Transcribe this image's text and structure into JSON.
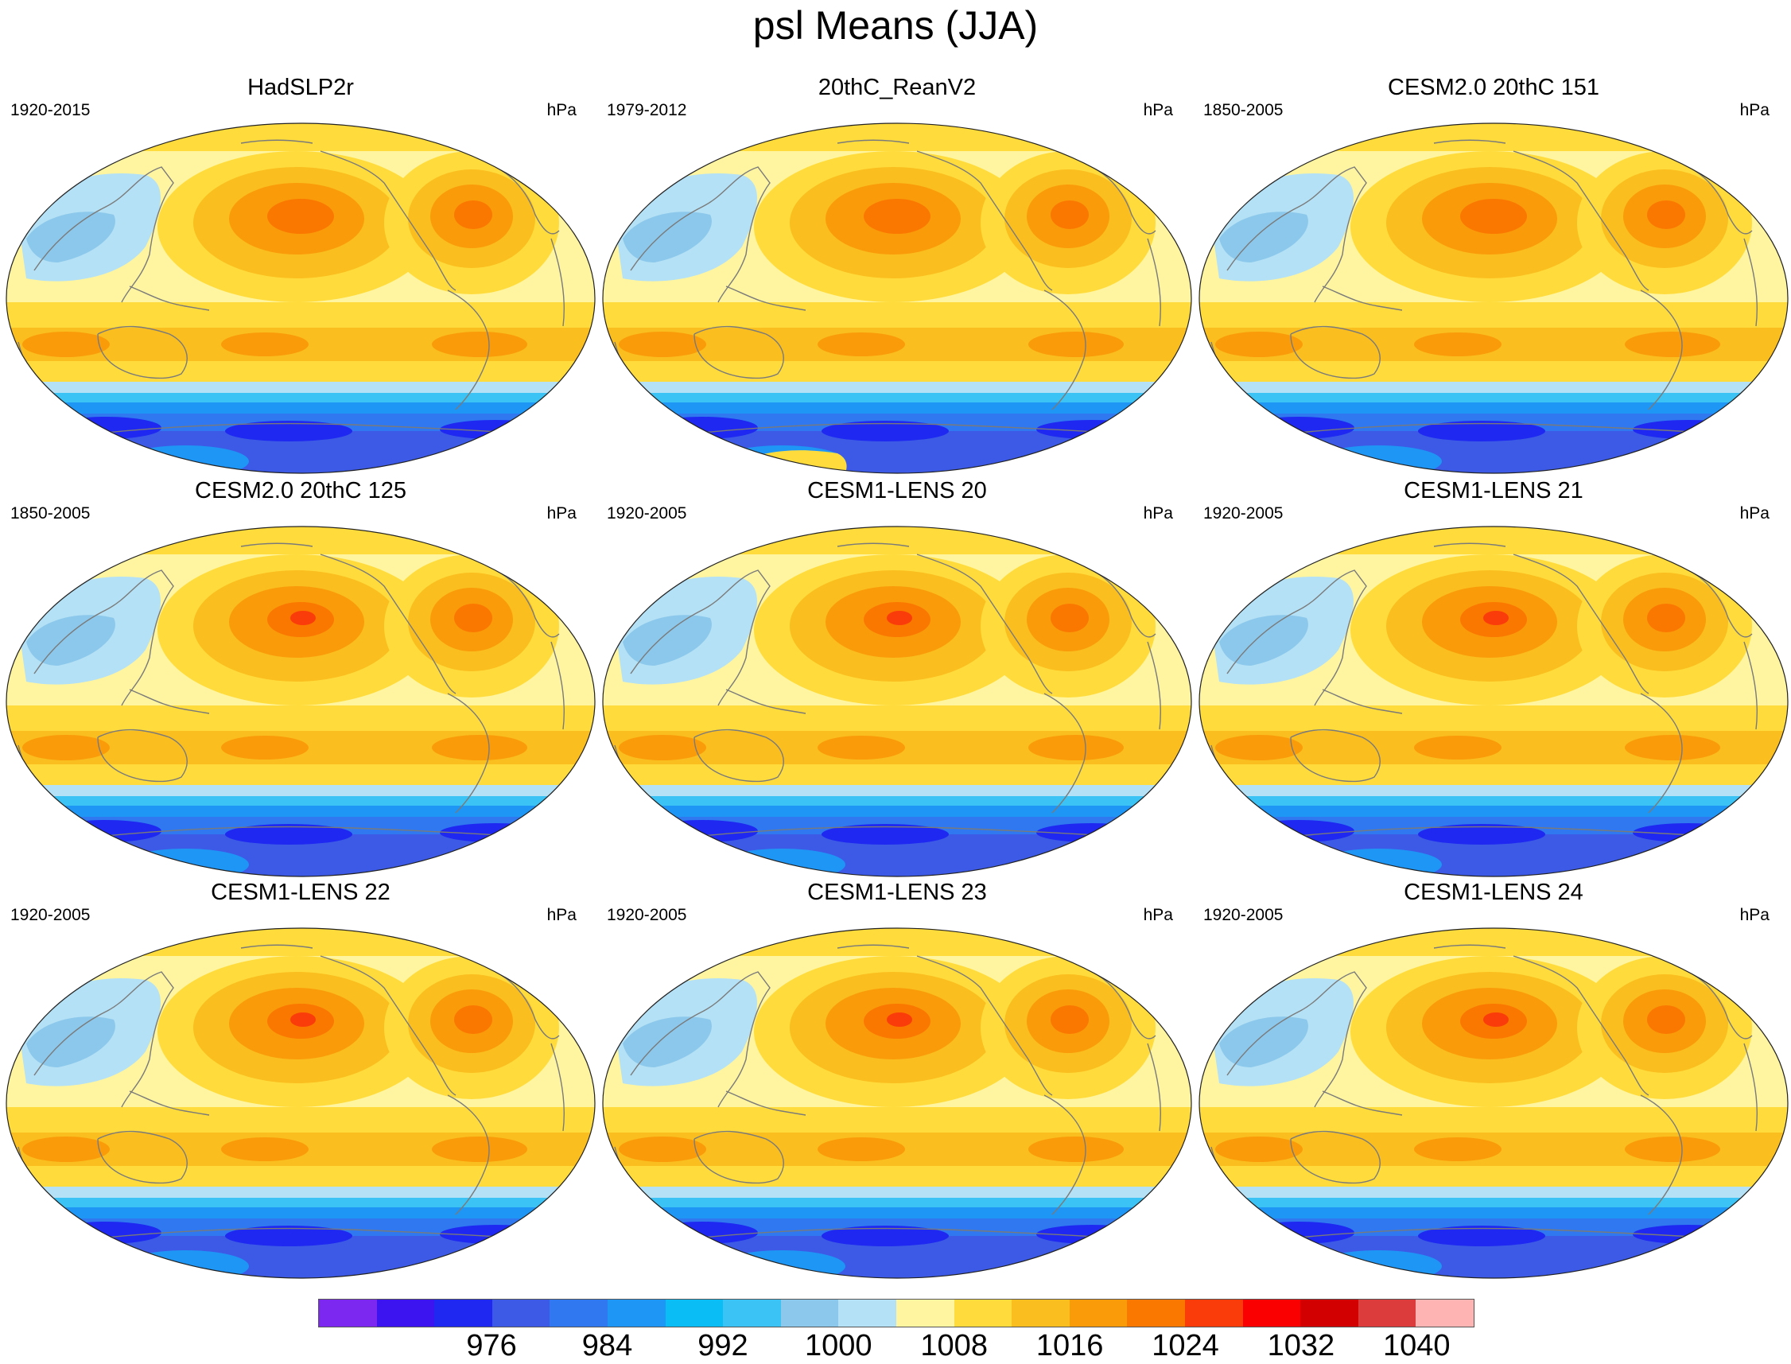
{
  "title": "psl Means (JJA)",
  "units": "hPa",
  "panels": [
    {
      "title": "HadSLP2r",
      "years": "1920-2015"
    },
    {
      "title": "20thC_ReanV2",
      "years": "1979-2012"
    },
    {
      "title": "CESM2.0 20thC 151",
      "years": "1850-2005"
    },
    {
      "title": "CESM2.0 20thC 125",
      "years": "1850-2005"
    },
    {
      "title": "CESM1-LENS 20",
      "years": "1920-2005"
    },
    {
      "title": "CESM1-LENS 21",
      "years": "1920-2005"
    },
    {
      "title": "CESM1-LENS 22",
      "years": "1920-2005"
    },
    {
      "title": "CESM1-LENS 23",
      "years": "1920-2005"
    },
    {
      "title": "CESM1-LENS 24",
      "years": "1920-2005"
    }
  ],
  "colorbar": {
    "labels": [
      "976",
      "984",
      "992",
      "1000",
      "1008",
      "1016",
      "1024",
      "1032",
      "1040"
    ],
    "colors": [
      "#7d28f0",
      "#3c14f0",
      "#1e28f0",
      "#3c5ae6",
      "#2f78f0",
      "#1e96f5",
      "#0abef5",
      "#3cc3f5",
      "#8cc8eb",
      "#b4e1f5",
      "#fff5a0",
      "#ffdc3c",
      "#fabe1e",
      "#fa9b0a",
      "#fa7800",
      "#fa3c0a",
      "#fa0000",
      "#d20000",
      "#dc3c3c",
      "#ffb4b4"
    ]
  },
  "map_colors": {
    "ocean_base": "#fff5a0",
    "band_light": "#ffdc3c",
    "band_mid": "#fabe1e",
    "high_core": "#fa9b0a",
    "high_center": "#fa7800",
    "high_peak": "#fa3c0a",
    "low_light": "#b4e1f5",
    "low_mid": "#8cc8eb",
    "south_1": "#3cc3f5",
    "south_2": "#1e96f5",
    "south_3": "#2f78f0",
    "south_4": "#3c5ae6",
    "south_5": "#1e28f0",
    "coast": "#7a7a7a"
  }
}
